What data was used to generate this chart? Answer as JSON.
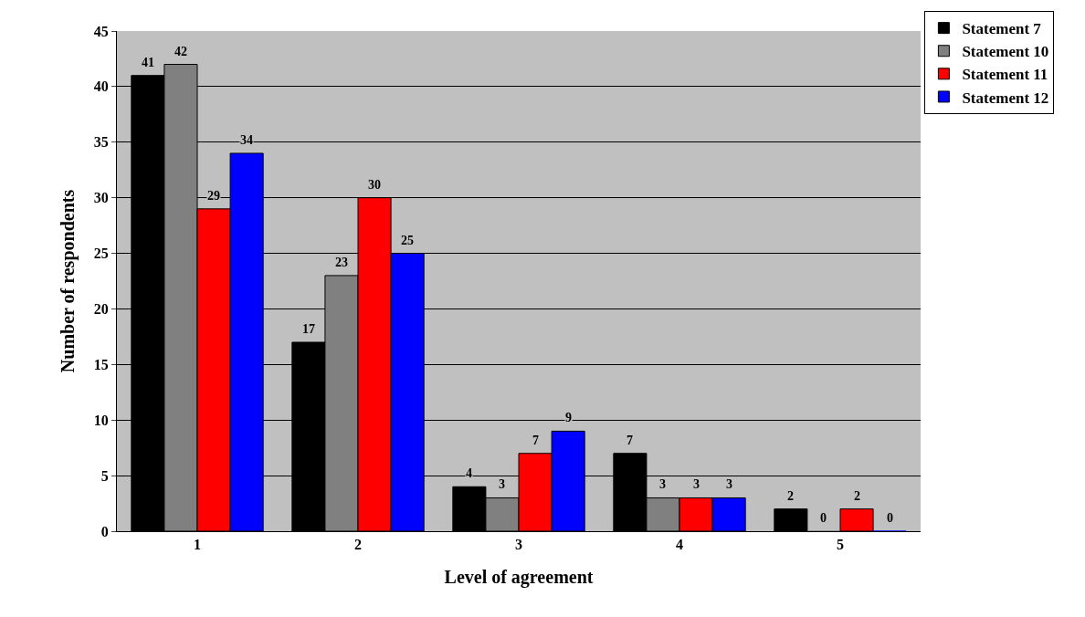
{
  "chart_data": {
    "type": "bar",
    "xlabel": "Level of agreement",
    "ylabel": "Number of respondents",
    "categories": [
      "1",
      "2",
      "3",
      "4",
      "5"
    ],
    "series": [
      {
        "name": "Statement 7",
        "color": "#000000",
        "values": [
          41,
          17,
          4,
          7,
          2
        ]
      },
      {
        "name": "Statement 10",
        "color": "#808080",
        "values": [
          42,
          23,
          3,
          3,
          0
        ]
      },
      {
        "name": "Statement 11",
        "color": "#ff0000",
        "values": [
          29,
          30,
          7,
          3,
          2
        ]
      },
      {
        "name": "Statement 12",
        "color": "#0000ff",
        "values": [
          34,
          25,
          9,
          3,
          0
        ]
      }
    ],
    "ylim": [
      0,
      45
    ],
    "yticks": [
      0,
      5,
      10,
      15,
      20,
      25,
      30,
      35,
      40,
      45
    ],
    "grid": "y",
    "legend": "top right",
    "data_labels": true
  }
}
